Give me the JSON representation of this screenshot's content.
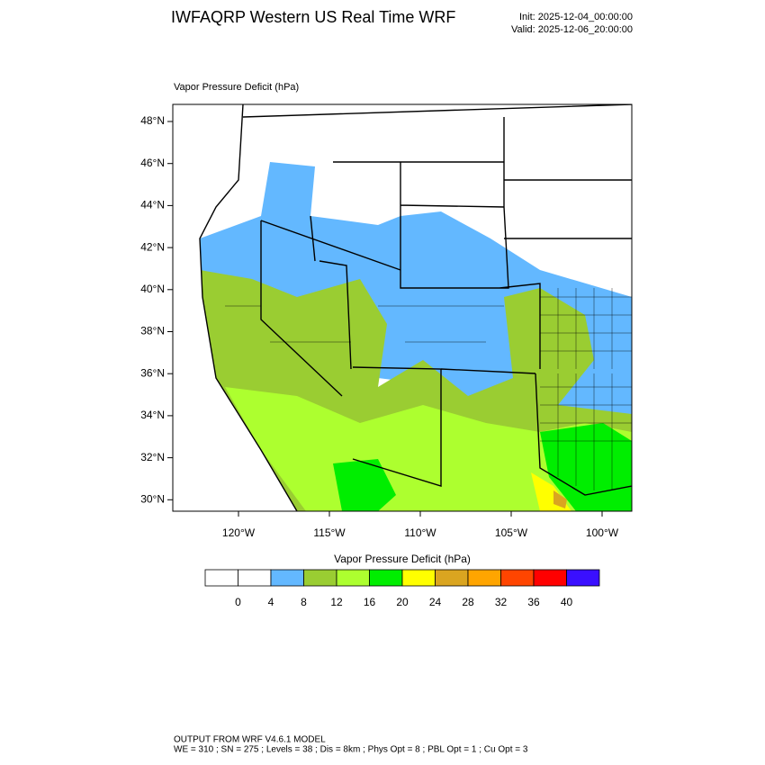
{
  "title": "IWFAQRP Western US Real Time WRF",
  "init": "Init: 2025-12-04_00:00:00",
  "valid": "Valid: 2025-12-06_20:00:00",
  "map": {
    "label": "Vapor Pressure Deficit   (hPa)",
    "lat_labels": [
      "48°N",
      "46°N",
      "44°N",
      "42°N",
      "40°N",
      "38°N",
      "36°N",
      "34°N",
      "32°N",
      "30°N"
    ],
    "lon_labels": [
      "120°W",
      "115°W",
      "110°W",
      "105°W",
      "100°W"
    ]
  },
  "colorbar": {
    "title": "Vapor Pressure Deficit  (hPa)",
    "colors": [
      "#ffffff",
      "#ffffff",
      "#63b8ff",
      "#9acd32",
      "#adff2f",
      "#00ee00",
      "#ffff00",
      "#daa520",
      "#ffa500",
      "#ff4500",
      "#ff0000",
      "#3a0fff"
    ],
    "ticks": [
      0,
      4,
      8,
      12,
      16,
      20,
      24,
      28,
      32,
      36,
      40
    ]
  },
  "footer": [
    "OUTPUT FROM WRF V4.6.1 MODEL",
    "WE = 310 ; SN = 275 ; Levels = 38 ; Dis = 8km ; Phys Opt = 8 ; PBL Opt = 1 ; Cu Opt = 3"
  ]
}
